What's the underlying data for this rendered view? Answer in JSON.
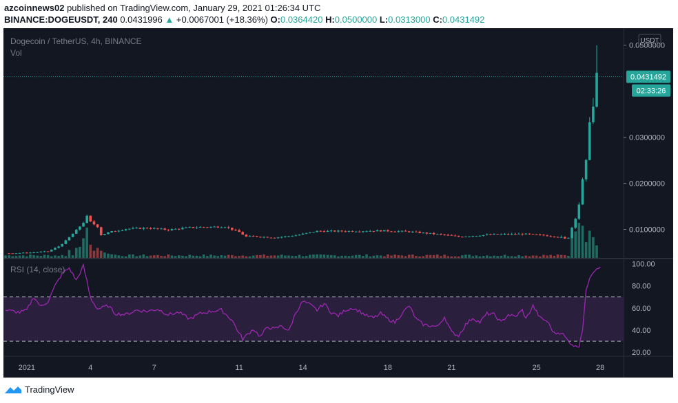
{
  "header": {
    "publisher": "azcoinnews02",
    "published_text": "published on TradingView.com, January 29, 2021 01:26:34 UTC",
    "symbol": "BINANCE:DOGEUSDT, 240",
    "last": "0.0431996",
    "change": "+0.0067001 (+18.36%)",
    "open_label": "O:",
    "open": "0.0364420",
    "high_label": "H:",
    "high": "0.0500000",
    "low_label": "L:",
    "low": "0.0313000",
    "close_label": "C:",
    "close": "0.0431492"
  },
  "footer": {
    "brand": "TradingView"
  },
  "colors": {
    "bg": "#131722",
    "up": "#26a69a",
    "down": "#ef5350",
    "rsi": "#9c27b0",
    "rsi_band": "#2a1f3d",
    "grid": "#1e222d"
  },
  "chart_data": [
    {
      "type": "candlestick",
      "title": "Dogecoin / TetherUS, 4h, BINANCE",
      "volume_label": "Vol",
      "currency": "USDT",
      "ylim": [
        0.0038,
        0.0525
      ],
      "y_ticks": [
        "0.0500000",
        "0.0300000",
        "0.0200000",
        "0.0100000"
      ],
      "y_tick_values": [
        0.05,
        0.03,
        0.02,
        0.01
      ],
      "last_price_label": "0.0431492",
      "last_price": 0.0431492,
      "countdown_label": "02:33:26",
      "x_ticks": [
        "2021",
        "4",
        "7",
        "11",
        "14",
        "18",
        "21",
        "25",
        "28"
      ],
      "x_tick_positions": [
        0,
        18,
        36,
        60,
        78,
        102,
        120,
        144,
        162
      ],
      "x_range": [
        -6,
        168
      ],
      "key_points": [
        [
          -6,
          0.0048
        ],
        [
          0,
          0.0049
        ],
        [
          6,
          0.0052
        ],
        [
          9,
          0.0063
        ],
        [
          11,
          0.0075
        ],
        [
          14,
          0.0098
        ],
        [
          16,
          0.0115
        ],
        [
          17,
          0.0128
        ],
        [
          18,
          0.0116
        ],
        [
          20,
          0.0106
        ],
        [
          21,
          0.0088
        ],
        [
          24,
          0.0095
        ],
        [
          28,
          0.0101
        ],
        [
          34,
          0.0103
        ],
        [
          40,
          0.0099
        ],
        [
          46,
          0.0104
        ],
        [
          56,
          0.0106
        ],
        [
          60,
          0.0094
        ],
        [
          62,
          0.0084
        ],
        [
          64,
          0.0085
        ],
        [
          70,
          0.0082
        ],
        [
          76,
          0.0087
        ],
        [
          82,
          0.0096
        ],
        [
          90,
          0.0096
        ],
        [
          100,
          0.0097
        ],
        [
          108,
          0.0095
        ],
        [
          118,
          0.0088
        ],
        [
          122,
          0.0084
        ],
        [
          126,
          0.0086
        ],
        [
          132,
          0.0089
        ],
        [
          140,
          0.009
        ],
        [
          146,
          0.0087
        ],
        [
          150,
          0.0084
        ],
        [
          152,
          0.0079
        ],
        [
          153,
          0.0083
        ],
        [
          154,
          0.0104
        ],
        [
          155,
          0.0126
        ],
        [
          156,
          0.0155
        ],
        [
          157,
          0.0205
        ],
        [
          158,
          0.0245
        ],
        [
          159,
          0.034
        ],
        [
          160,
          0.0365
        ],
        [
          161,
          0.0431
        ]
      ],
      "volume_ylim": [
        0,
        1
      ],
      "volume_spikes": [
        [
          12,
          0.22
        ],
        [
          14,
          0.28
        ],
        [
          15,
          0.31
        ],
        [
          16,
          0.55
        ],
        [
          17,
          0.85
        ],
        [
          18,
          0.37
        ],
        [
          19,
          0.2
        ],
        [
          20,
          0.28
        ],
        [
          21,
          0.2
        ],
        [
          22,
          0.15
        ],
        [
          23,
          0.12
        ],
        [
          24,
          0.1
        ],
        [
          25,
          0.09
        ],
        [
          154,
          0.68
        ],
        [
          155,
          0.74
        ],
        [
          156,
          0.98
        ],
        [
          157,
          0.9
        ],
        [
          158,
          0.44
        ],
        [
          159,
          0.76
        ],
        [
          160,
          0.58
        ],
        [
          161,
          0.35
        ]
      ]
    },
    {
      "type": "line",
      "title": "RSI (14, close)",
      "ylim": [
        17,
        104
      ],
      "y_ticks": [
        "100.00",
        "80.00",
        "60.00",
        "40.00",
        "20.00"
      ],
      "y_tick_values": [
        100,
        80,
        60,
        40,
        20
      ],
      "bands": [
        30,
        70
      ],
      "key_points": [
        [
          -6,
          58
        ],
        [
          -2,
          56
        ],
        [
          0,
          58
        ],
        [
          2,
          70
        ],
        [
          4,
          61
        ],
        [
          6,
          66
        ],
        [
          8,
          80
        ],
        [
          10,
          91
        ],
        [
          12,
          96
        ],
        [
          14,
          85
        ],
        [
          16,
          98
        ],
        [
          17,
          84
        ],
        [
          18,
          69
        ],
        [
          20,
          59
        ],
        [
          23,
          62
        ],
        [
          25,
          55
        ],
        [
          28,
          54
        ],
        [
          31,
          58
        ],
        [
          34,
          57
        ],
        [
          37,
          59
        ],
        [
          40,
          54
        ],
        [
          43,
          56
        ],
        [
          46,
          50
        ],
        [
          49,
          55
        ],
        [
          52,
          57
        ],
        [
          55,
          58
        ],
        [
          58,
          49
        ],
        [
          60,
          37
        ],
        [
          61,
          32
        ],
        [
          62,
          35
        ],
        [
          64,
          41
        ],
        [
          66,
          34
        ],
        [
          68,
          43
        ],
        [
          70,
          41
        ],
        [
          72,
          44
        ],
        [
          74,
          39
        ],
        [
          76,
          56
        ],
        [
          78,
          66
        ],
        [
          80,
          63
        ],
        [
          82,
          58
        ],
        [
          84,
          64
        ],
        [
          86,
          56
        ],
        [
          88,
          53
        ],
        [
          90,
          58
        ],
        [
          92,
          60
        ],
        [
          94,
          57
        ],
        [
          96,
          53
        ],
        [
          98,
          51
        ],
        [
          100,
          55
        ],
        [
          102,
          50
        ],
        [
          104,
          47
        ],
        [
          106,
          55
        ],
        [
          108,
          62
        ],
        [
          110,
          50
        ],
        [
          112,
          45
        ],
        [
          114,
          44
        ],
        [
          116,
          43
        ],
        [
          118,
          52
        ],
        [
          120,
          38
        ],
        [
          122,
          35
        ],
        [
          124,
          45
        ],
        [
          126,
          51
        ],
        [
          128,
          47
        ],
        [
          130,
          55
        ],
        [
          132,
          54
        ],
        [
          134,
          47
        ],
        [
          136,
          54
        ],
        [
          138,
          52
        ],
        [
          140,
          58
        ],
        [
          141,
          50
        ],
        [
          143,
          62
        ],
        [
          145,
          51
        ],
        [
          147,
          48
        ],
        [
          149,
          37
        ],
        [
          151,
          38
        ],
        [
          153,
          30
        ],
        [
          155,
          25
        ],
        [
          156,
          26
        ],
        [
          157,
          41
        ],
        [
          158,
          75
        ],
        [
          159,
          88
        ],
        [
          160,
          93
        ],
        [
          161,
          96
        ],
        [
          162,
          98
        ]
      ]
    }
  ]
}
